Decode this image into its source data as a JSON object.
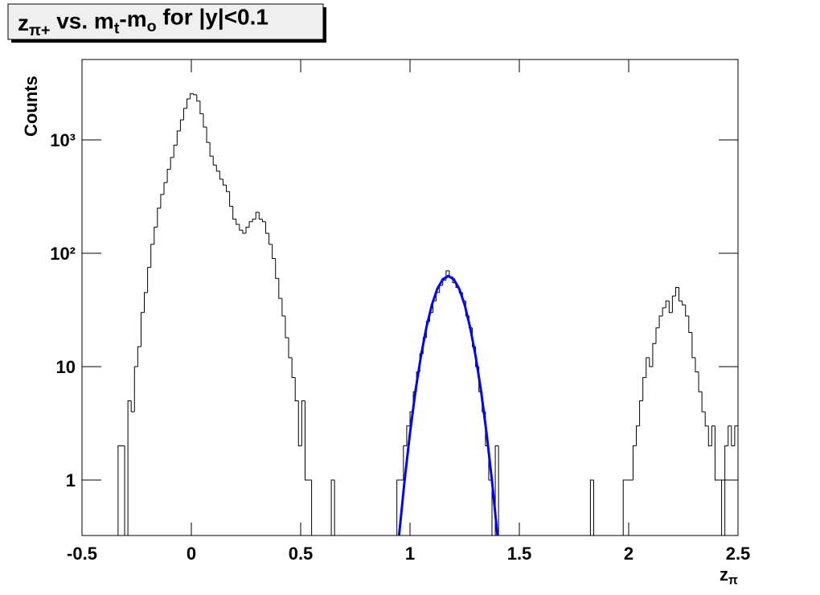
{
  "chart_data": {
    "type": "histogram",
    "title": [
      {
        "text": "z"
      },
      {
        "text": "π+",
        "sub": true
      },
      {
        "text": " vs. m"
      },
      {
        "text": "t",
        "sub": true
      },
      {
        "text": "-m"
      },
      {
        "text": "o",
        "sub": true
      },
      {
        "text": " for |y|<0.1"
      }
    ],
    "xlabel": [
      {
        "text": "z"
      },
      {
        "text": "π",
        "sub": true
      }
    ],
    "ylabel": "Counts",
    "log_y": true,
    "color": "#000000",
    "xlim": [
      -0.5,
      2.5
    ],
    "xticks": [
      -0.5,
      0,
      0.5,
      1,
      1.5,
      2,
      2.5
    ],
    "ylim": [
      0.324,
      5120
    ],
    "yticks": [
      1,
      10,
      {
        "value": 100,
        "label": "10²"
      },
      {
        "value": 1000,
        "label": "10³"
      }
    ],
    "bins": [
      -0.5,
      -0.485,
      -0.47,
      -0.455,
      -0.44,
      -0.425,
      -0.41,
      -0.395,
      -0.38,
      -0.365,
      -0.35,
      -0.335,
      -0.32,
      -0.305,
      -0.29,
      -0.275,
      -0.26,
      -0.245,
      -0.23,
      -0.215,
      -0.2,
      -0.185,
      -0.17,
      -0.155,
      -0.14,
      -0.125,
      -0.11,
      -0.095,
      -0.08,
      -0.065,
      -0.05,
      -0.035,
      -0.02,
      -0.005,
      0.01,
      0.025,
      0.04,
      0.055,
      0.07,
      0.085,
      0.1,
      0.115,
      0.13,
      0.145,
      0.16,
      0.175,
      0.19,
      0.205,
      0.22,
      0.235,
      0.25,
      0.265,
      0.28,
      0.295,
      0.31,
      0.325,
      0.34,
      0.355,
      0.37,
      0.385,
      0.4,
      0.415,
      0.43,
      0.445,
      0.46,
      0.475,
      0.49,
      0.505,
      0.52,
      0.535,
      0.55,
      0.565,
      0.58,
      0.595,
      0.61,
      0.625,
      0.64,
      0.655,
      0.67,
      0.685,
      0.7,
      0.715,
      0.73,
      0.745,
      0.76,
      0.775,
      0.79,
      0.805,
      0.82,
      0.835,
      0.85,
      0.865,
      0.88,
      0.895,
      0.91,
      0.925,
      0.94,
      0.955,
      0.97,
      0.985,
      1.0,
      1.015,
      1.03,
      1.045,
      1.06,
      1.075,
      1.09,
      1.105,
      1.12,
      1.135,
      1.15,
      1.165,
      1.18,
      1.195,
      1.21,
      1.225,
      1.24,
      1.255,
      1.27,
      1.285,
      1.3,
      1.315,
      1.33,
      1.345,
      1.36,
      1.375,
      1.39,
      1.405,
      1.42,
      1.435,
      1.45,
      1.465,
      1.48,
      1.495,
      1.51,
      1.525,
      1.54,
      1.555,
      1.57,
      1.585,
      1.6,
      1.615,
      1.63,
      1.645,
      1.66,
      1.675,
      1.69,
      1.705,
      1.72,
      1.735,
      1.75,
      1.765,
      1.78,
      1.795,
      1.81,
      1.825,
      1.84,
      1.855,
      1.87,
      1.885,
      1.9,
      1.915,
      1.93,
      1.945,
      1.96,
      1.975,
      1.99,
      2.005,
      2.02,
      2.035,
      2.05,
      2.065,
      2.08,
      2.095,
      2.11,
      2.125,
      2.14,
      2.155,
      2.17,
      2.185,
      2.2,
      2.215,
      2.23,
      2.245,
      2.26,
      2.275,
      2.29,
      2.305,
      2.32,
      2.335,
      2.35,
      2.365,
      2.38,
      2.395,
      2.41,
      2.425,
      2.44,
      2.455,
      2.47,
      2.485,
      2.5
    ],
    "values": [
      0,
      0,
      0,
      0,
      0,
      0,
      0,
      0,
      0,
      0,
      0,
      2,
      2,
      0,
      5,
      4,
      10,
      15,
      30,
      45,
      75,
      120,
      170,
      250,
      330,
      420,
      550,
      700,
      900,
      1200,
      1500,
      1900,
      2300,
      2550,
      2500,
      2200,
      1700,
      1300,
      950,
      720,
      600,
      530,
      450,
      400,
      350,
      260,
      200,
      180,
      160,
      150,
      170,
      190,
      200,
      230,
      200,
      190,
      150,
      120,
      90,
      60,
      40,
      28,
      18,
      12,
      8,
      5,
      2,
      5,
      1,
      1,
      0,
      0,
      0,
      0,
      0,
      0,
      1,
      0,
      0,
      0,
      0,
      0,
      0,
      0,
      0,
      0,
      0,
      0,
      0,
      0,
      0,
      0,
      0,
      0,
      0,
      0,
      1,
      1,
      2,
      3,
      4,
      6,
      9,
      13,
      18,
      25,
      30,
      38,
      45,
      52,
      58,
      70,
      62,
      55,
      50,
      45,
      38,
      28,
      22,
      15,
      10,
      6,
      4,
      2,
      1,
      0,
      2,
      0,
      0,
      0,
      0,
      0,
      0,
      0,
      0,
      0,
      0,
      0,
      0,
      0,
      0,
      0,
      0,
      0,
      0,
      0,
      0,
      0,
      0,
      0,
      0,
      0,
      0,
      0,
      0,
      1,
      0,
      0,
      0,
      0,
      0,
      0,
      0,
      0,
      0,
      1,
      1,
      1,
      2,
      3,
      5,
      8,
      12,
      10,
      16,
      22,
      28,
      33,
      38,
      30,
      42,
      50,
      38,
      35,
      28,
      20,
      12,
      9,
      6,
      4,
      3,
      2,
      3,
      1,
      1,
      0,
      2,
      3,
      2,
      3
    ],
    "fit": {
      "type": "line",
      "color": "#0000ff",
      "x": [
        0.95,
        0.975,
        1.0,
        1.025,
        1.05,
        1.075,
        1.1,
        1.125,
        1.15,
        1.175,
        1.2,
        1.225,
        1.25,
        1.275,
        1.3,
        1.325,
        1.35,
        1.375,
        1.4
      ],
      "values": [
        0.32,
        0.98,
        2.6,
        6.1,
        12.4,
        22.2,
        35.1,
        48.6,
        59,
        63,
        59,
        48.6,
        35.1,
        22.2,
        12.4,
        6.1,
        2.6,
        0.98,
        0.32
      ]
    }
  }
}
